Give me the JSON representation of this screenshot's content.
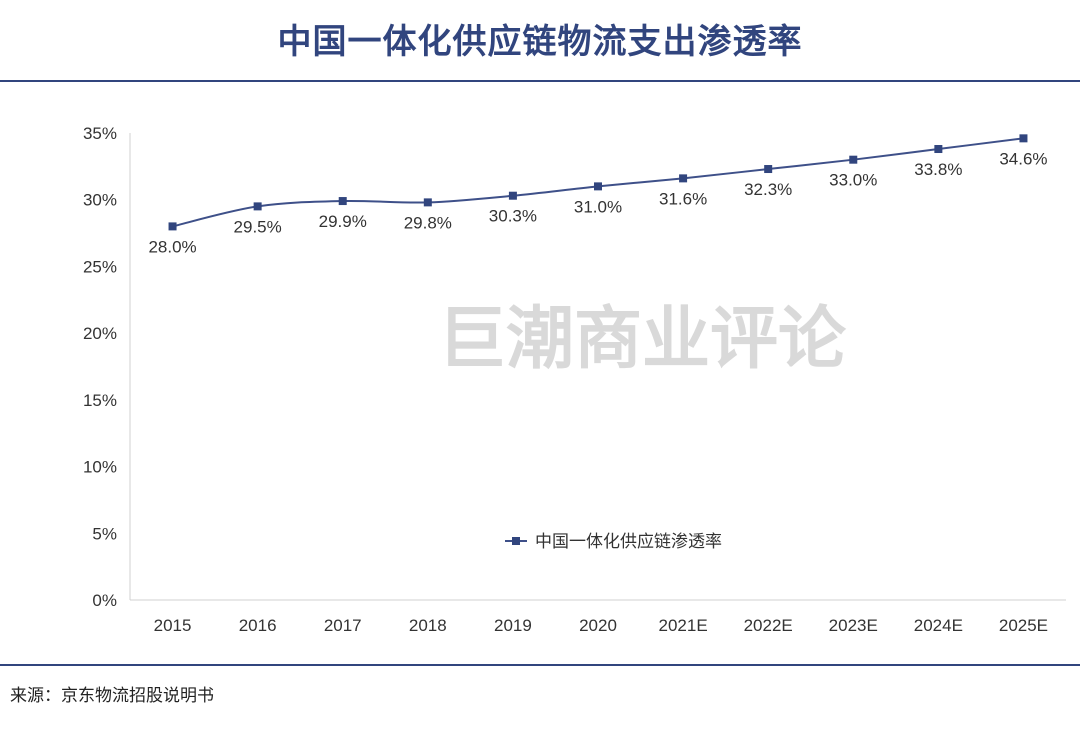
{
  "title": "中国一体化供应链物流支出渗透率",
  "source": "来源：京东物流招股说明书",
  "watermark": "巨潮商业评论",
  "colors": {
    "accent": "#31457e",
    "line": "#3e5089",
    "watermark": "#d9d9d9"
  },
  "chart_data": {
    "type": "line",
    "categories": [
      "2015",
      "2016",
      "2017",
      "2018",
      "2019",
      "2020",
      "2021E",
      "2022E",
      "2023E",
      "2024E",
      "2025E"
    ],
    "series": [
      {
        "name": "中国一体化供应链渗透率",
        "values": [
          28.0,
          29.5,
          29.9,
          29.8,
          30.3,
          31.0,
          31.6,
          32.3,
          33.0,
          33.8,
          34.6
        ],
        "labels": [
          "28.0%",
          "29.5%",
          "29.9%",
          "29.8%",
          "30.3%",
          "31.0%",
          "31.6%",
          "32.3%",
          "33.0%",
          "33.8%",
          "34.6%"
        ]
      }
    ],
    "yticks": [
      "0%",
      "5%",
      "10%",
      "15%",
      "20%",
      "25%",
      "30%",
      "35%"
    ],
    "ylim": [
      0,
      35
    ],
    "grid": false,
    "legend": "bottom-center",
    "marker": "square",
    "smooth": true
  }
}
